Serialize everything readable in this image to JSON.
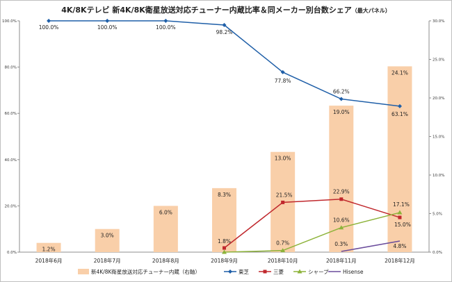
{
  "title": "4K/8Kテレビ 新4K/8K衛星放送対応チューナー内蔵比率＆同メーカー別台数シェア",
  "subtitle": "（最大パネル）",
  "chart_data": {
    "type": "bar+line",
    "categories": [
      "2018年6月",
      "2018年7月",
      "2018年8月",
      "2018年9月",
      "2018年10月",
      "2018年11月",
      "2018年12月"
    ],
    "bar_series": {
      "name": "新4K/8K衛星放送対応チューナー内蔵（右軸）",
      "axis": "right",
      "color": "#f9cfa9",
      "values": [
        1.2,
        3.0,
        6.0,
        8.3,
        13.0,
        19.0,
        24.1
      ],
      "labels": [
        "1.2%",
        "3.0%",
        "6.0%",
        "8.3%",
        "13.0%",
        "19.0%",
        "24.1%"
      ]
    },
    "line_series": [
      {
        "name": "東芝",
        "color": "#1f5fa8",
        "marker": "diamond",
        "values": [
          100.0,
          100.0,
          100.0,
          98.2,
          77.8,
          66.2,
          63.1
        ],
        "labels": [
          "100.0%",
          "100.0%",
          "100.0%",
          "98.2%",
          "77.8%",
          "66.2%",
          "63.1%"
        ]
      },
      {
        "name": "三菱",
        "color": "#c0282d",
        "marker": "square",
        "values": [
          null,
          null,
          null,
          1.8,
          21.5,
          22.9,
          15.0
        ],
        "labels": [
          "",
          "",
          "",
          "1.8%",
          "21.5%",
          "22.9%",
          "15.0%"
        ]
      },
      {
        "name": "シャープ",
        "color": "#8db33a",
        "marker": "triangle",
        "values": [
          null,
          null,
          null,
          0.0,
          0.7,
          10.6,
          17.1
        ],
        "labels": [
          "",
          "",
          "",
          "",
          "0.7%",
          "10.6%",
          "17.1%"
        ]
      },
      {
        "name": "Hisense",
        "color": "#6a4c9c",
        "marker": "none",
        "values": [
          null,
          null,
          null,
          null,
          null,
          0.3,
          4.8
        ],
        "labels": [
          "",
          "",
          "",
          "",
          "",
          "0.3%",
          "4.8%"
        ]
      }
    ],
    "left_axis": {
      "ylim": [
        0,
        100
      ],
      "ticks": [
        "0.0%",
        "20.0%",
        "40.0%",
        "60.0%",
        "80.0%",
        "100.0%"
      ]
    },
    "right_axis": {
      "ylim": [
        0,
        30
      ],
      "ticks": [
        "0.0%",
        "5.0%",
        "10.0%",
        "15.0%",
        "20.0%",
        "25.0%",
        "30.0%"
      ]
    },
    "grid": false,
    "legend_position": "bottom"
  }
}
